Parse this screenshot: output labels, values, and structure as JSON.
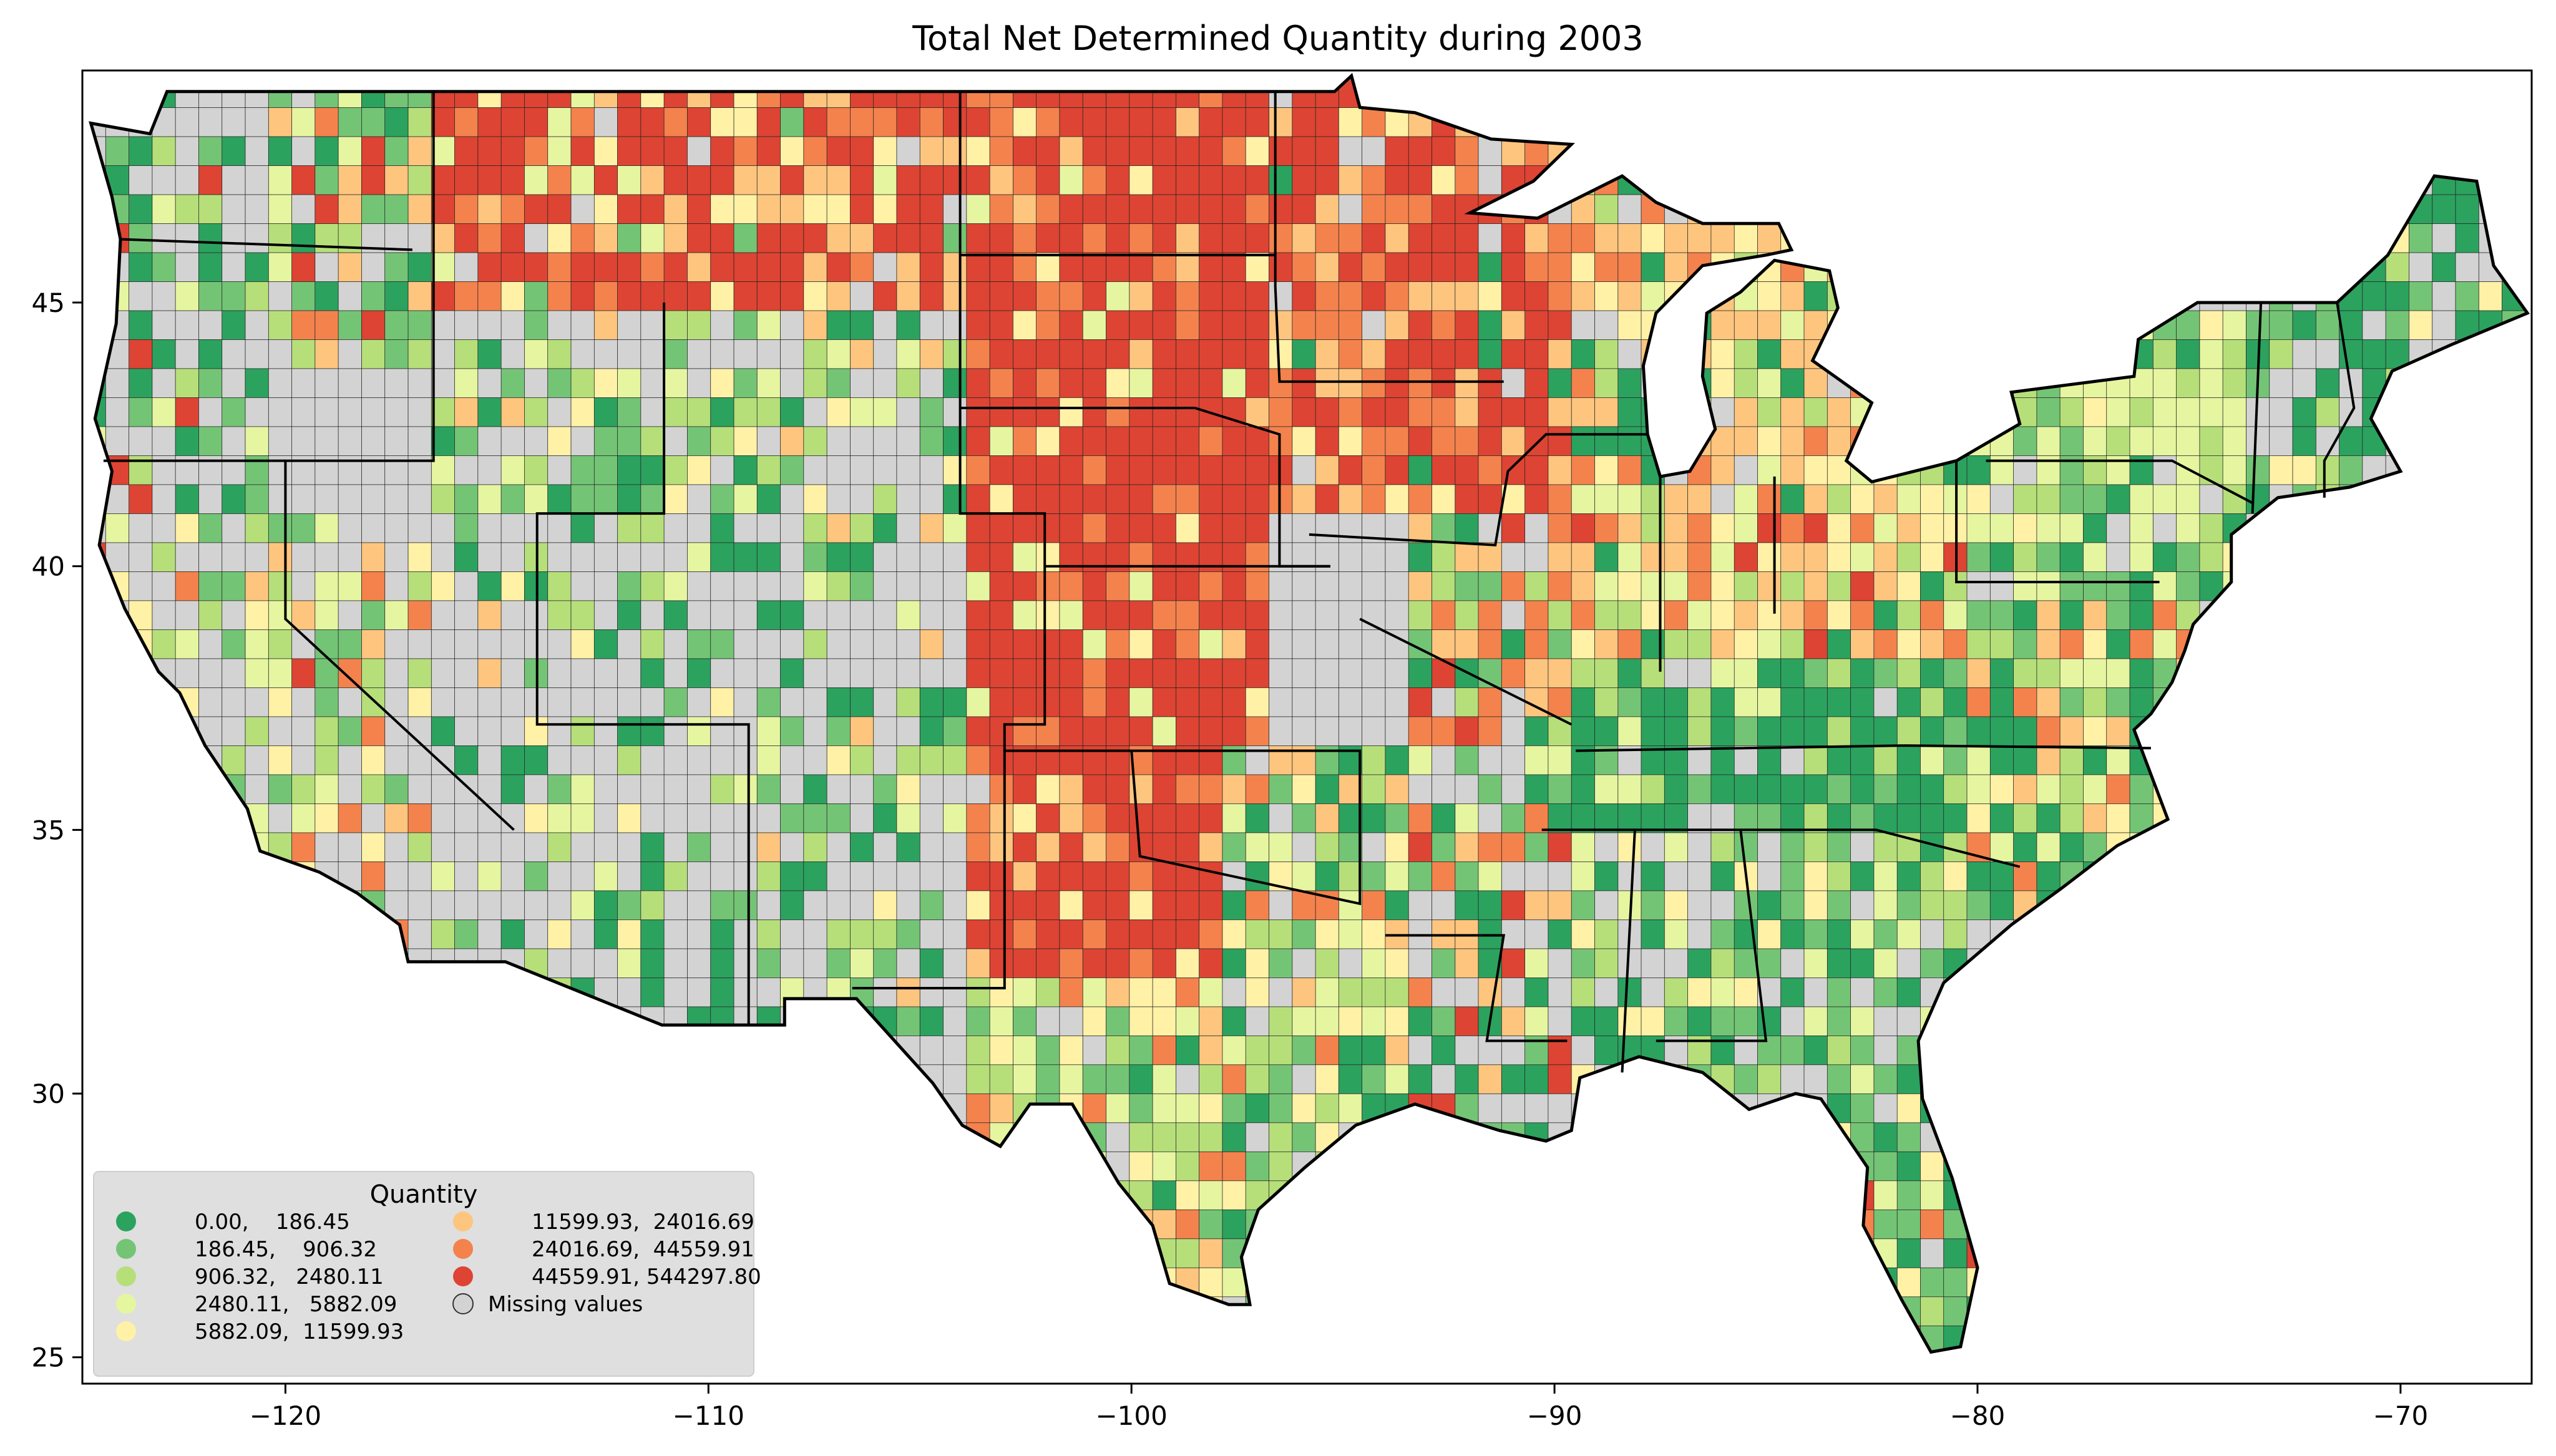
{
  "title": "Total Net Determined Quantity during 2003",
  "axes": {
    "x_ticks": [
      "−120",
      "−110",
      "−100",
      "−90",
      "−80",
      "−70"
    ],
    "y_ticks": [
      "25",
      "30",
      "35",
      "40",
      "45"
    ],
    "xlim": [
      -124.8,
      -66.9
    ],
    "ylim": [
      24.5,
      49.4
    ]
  },
  "legend": {
    "title": "Quantity",
    "placement": "bottom-left",
    "items": [
      {
        "label": "0.00,    186.45",
        "color": "#2ca25f"
      },
      {
        "label": "186.45,    906.32",
        "color": "#74c476"
      },
      {
        "label": "906.32,   2480.11",
        "color": "#b6df7a"
      },
      {
        "label": "2480.11,   5882.09",
        "color": "#e6f5a0"
      },
      {
        "label": "5882.09,  11599.93",
        "color": "#fff1a6"
      },
      {
        "label": "11599.93,  24016.69",
        "color": "#fdc57e"
      },
      {
        "label": "24016.69,  44559.91",
        "color": "#f4824d"
      },
      {
        "label": "44559.91, 544297.80",
        "color": "#dd4433"
      },
      {
        "label": "Missing values",
        "color": "#d3d3d3"
      }
    ]
  },
  "colors": {
    "missing": "#d3d3d3",
    "border": "#000000",
    "legend_bg": "#dedede"
  },
  "chart_data": {
    "type": "choropleth",
    "region": "Contiguous United States (counties)",
    "variable": "Quantity",
    "title": "Total Net Determined Quantity during 2003",
    "classes": [
      {
        "min": 0.0,
        "max": 186.45,
        "color": "#2ca25f"
      },
      {
        "min": 186.45,
        "max": 906.32,
        "color": "#74c476"
      },
      {
        "min": 906.32,
        "max": 2480.11,
        "color": "#b6df7a"
      },
      {
        "min": 2480.11,
        "max": 5882.09,
        "color": "#e6f5a0"
      },
      {
        "min": 5882.09,
        "max": 11599.93,
        "color": "#fff1a6"
      },
      {
        "min": 11599.93,
        "max": 24016.69,
        "color": "#fdc57e"
      },
      {
        "min": 24016.69,
        "max": 44559.91,
        "color": "#f4824d"
      },
      {
        "min": 44559.91,
        "max": 544297.8,
        "color": "#dd4433"
      }
    ],
    "missing_label": "Missing values",
    "xlim": [
      -124.8,
      -66.9
    ],
    "ylim": [
      24.5,
      49.4
    ],
    "x_ticks": [
      -120,
      -110,
      -100,
      -90,
      -80,
      -70
    ],
    "y_ticks": [
      25,
      30,
      35,
      40,
      45
    ],
    "regional_patterns": [
      {
        "area": "Great Plains (ND, SD, NE, KS, W-OK, TX Panhandle)",
        "class": 7
      },
      {
        "area": "Iowa / S-Minnesota",
        "class": 7
      },
      {
        "area": "E-Montana",
        "class": 7
      },
      {
        "area": "Illinois / Indiana / Ohio",
        "class": 5
      },
      {
        "area": "Kentucky / Tennessee",
        "class": 0
      },
      {
        "area": "Nevada / Utah / Arizona",
        "class": -1
      },
      {
        "area": "Georgia / Alabama interior",
        "class": -1
      },
      {
        "area": "New England",
        "class": 1
      },
      {
        "area": "Florida",
        "class": 1
      },
      {
        "area": "Gulf Coast Texas",
        "class": 5
      }
    ]
  }
}
